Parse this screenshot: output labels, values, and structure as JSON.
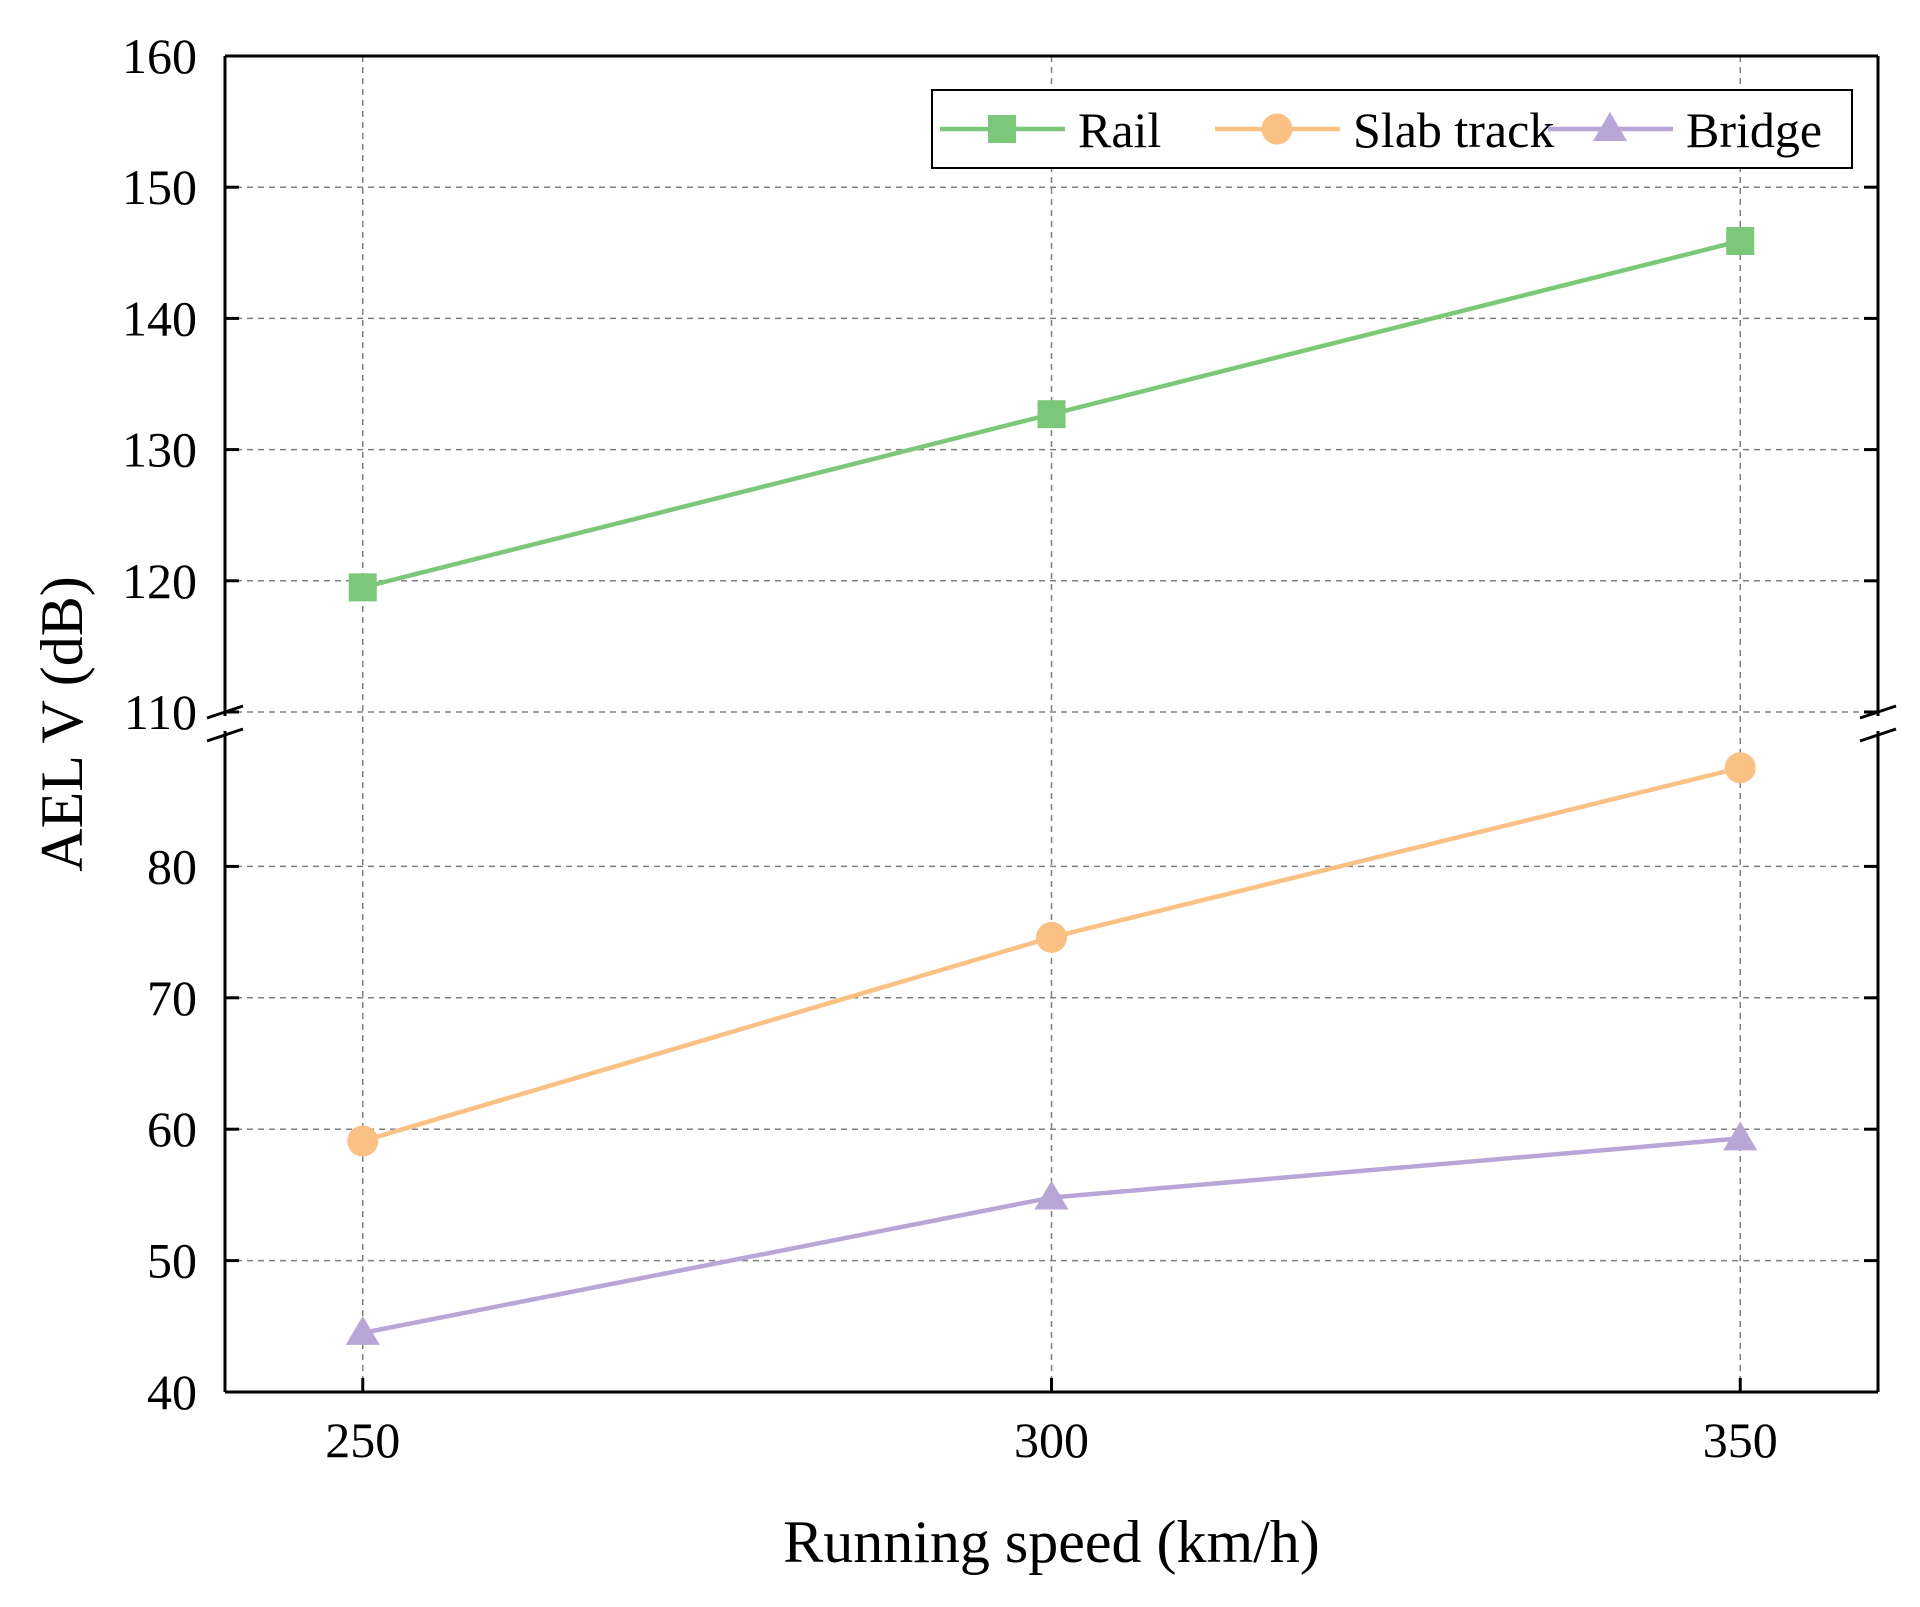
{
  "chart_data": {
    "type": "line",
    "title": "",
    "xlabel": "Running speed (km/h)",
    "ylabel": "AEL V (dB)",
    "x": [
      250,
      300,
      350
    ],
    "xlim": [
      240,
      360
    ],
    "x_ticks": [
      "250",
      "300",
      "350"
    ],
    "y_lower_ticks": [
      "40",
      "50",
      "60",
      "70",
      "80"
    ],
    "y_upper_ticks": [
      "110",
      "120",
      "130",
      "140",
      "150",
      "160"
    ],
    "y_lower_range": [
      40,
      90
    ],
    "y_upper_range": [
      110,
      160
    ],
    "axis_break": "between 90 and 110",
    "grid": true,
    "legend_position": "top-right",
    "series": [
      {
        "name": "Rail",
        "marker": "square",
        "color": "#7cc87a",
        "values": [
          119.5,
          132.7,
          145.9
        ]
      },
      {
        "name": "Slab track",
        "marker": "circle",
        "color": "#fbc083",
        "values": [
          59.1,
          74.6,
          87.5
        ]
      },
      {
        "name": "Bridge",
        "marker": "triangle",
        "color": "#b8a6d6",
        "values": [
          44.5,
          54.8,
          59.3
        ]
      }
    ]
  }
}
